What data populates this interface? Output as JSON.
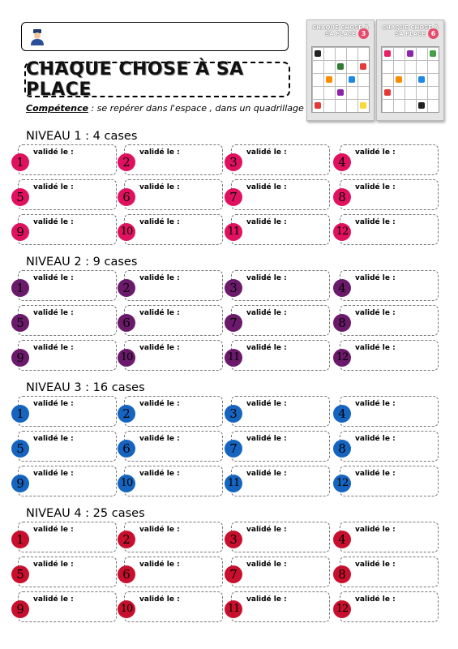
{
  "header": {
    "title": "CHAQUE CHOSE À SA PLACE",
    "competence_label": "Compétence",
    "competence_sep": " :",
    "competence_text": "  se repérer dans l'espace , dans un quadrillage",
    "avatar_icon": "student-avatar-icon"
  },
  "thumbnails": [
    {
      "title": "CHAQUE CHOSE À SA PLACE",
      "badge": "3"
    },
    {
      "title": "CHAQUE CHOSE À SA PLACE",
      "badge": "6"
    }
  ],
  "cell_label": "validé le :",
  "levels": [
    {
      "title": "NIVEAU 1 : 4 cases",
      "color": "#e0115f",
      "numbers": [
        "1",
        "2",
        "3",
        "4",
        "5",
        "6",
        "7",
        "8",
        "9",
        "10",
        "11",
        "12"
      ]
    },
    {
      "title": "NIVEAU 2 : 9 cases",
      "color": "#6b1a6b",
      "numbers": [
        "1",
        "2",
        "3",
        "4",
        "5",
        "6",
        "7",
        "8",
        "9",
        "10",
        "11",
        "12"
      ]
    },
    {
      "title": "NIVEAU 3 : 16 cases",
      "color": "#1565c0",
      "numbers": [
        "1",
        "2",
        "3",
        "4",
        "5",
        "6",
        "7",
        "8",
        "9",
        "10",
        "11",
        "12"
      ]
    },
    {
      "title": "NIVEAU 4 : 25 cases",
      "color": "#c8102e",
      "numbers": [
        "1",
        "2",
        "3",
        "4",
        "5",
        "6",
        "7",
        "8",
        "9",
        "10",
        "11",
        "12"
      ]
    }
  ]
}
